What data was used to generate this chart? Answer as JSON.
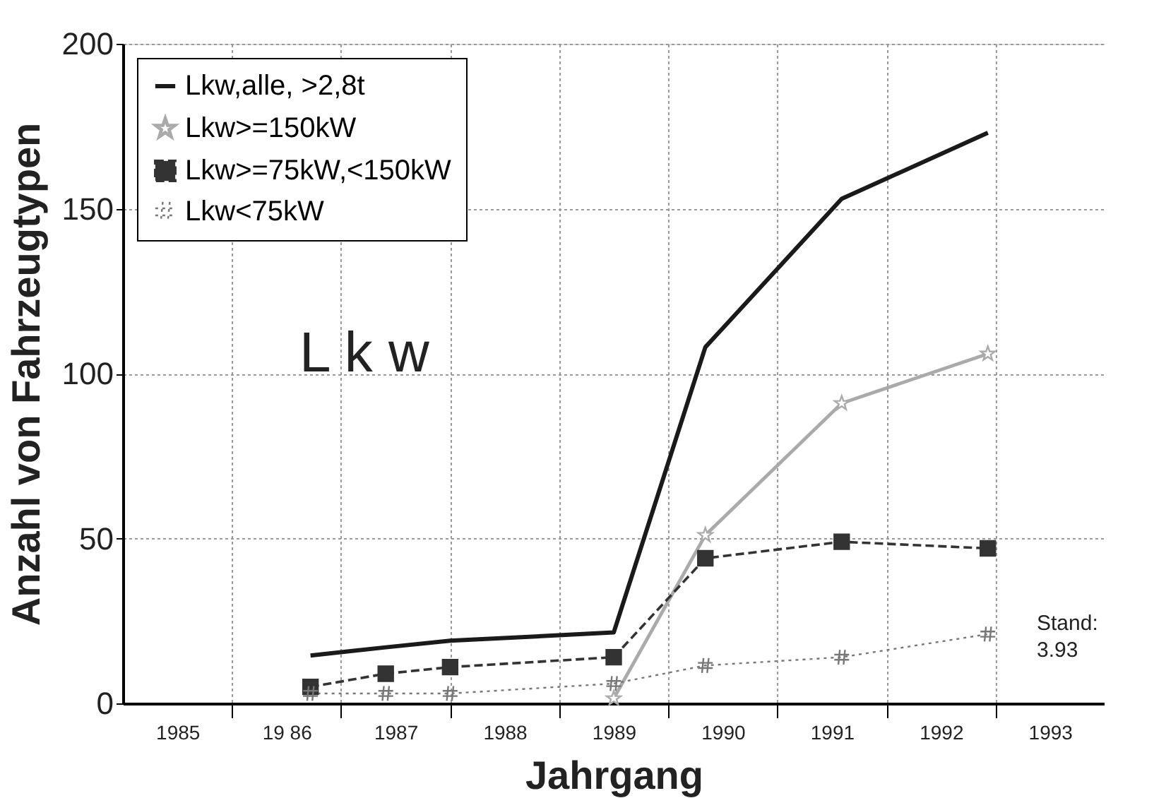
{
  "chart_data": {
    "type": "line",
    "xlabel": "Jahrgang",
    "ylabel": "Anzahl von Fahrzeugtypen",
    "xlim": [
      1985,
      1994
    ],
    "xticks": [
      {
        "value": 1985.5,
        "label": "1985"
      },
      {
        "value": 1986.5,
        "label": "19 86"
      },
      {
        "value": 1987.5,
        "label": "1987"
      },
      {
        "value": 1988.5,
        "label": "1988"
      },
      {
        "value": 1989.5,
        "label": "1989"
      },
      {
        "value": 1990.5,
        "label": "1990"
      },
      {
        "value": 1991.5,
        "label": "1991"
      },
      {
        "value": 1992.5,
        "label": "1992"
      },
      {
        "value": 1993.5,
        "label": "1993"
      },
      {
        "value": 1986,
        "label": null
      },
      {
        "value": 1987,
        "label": null
      },
      {
        "value": 1988,
        "label": null
      },
      {
        "value": 1989,
        "label": null
      },
      {
        "value": 1990,
        "label": null
      },
      {
        "value": 1991,
        "label": null
      },
      {
        "value": 1992,
        "label": null
      },
      {
        "value": 1993,
        "label": null
      }
    ],
    "ylim": [
      0,
      200
    ],
    "yticks": [
      0,
      50,
      100,
      150,
      200
    ],
    "grid": true,
    "legend": "top left",
    "x": [
      1986.72,
      1987.41,
      1988.0,
      1989.5,
      1990.34,
      1991.59,
      1992.93
    ],
    "series": [
      {
        "name": "Lkw,alle, >2,8t",
        "color": "#1a1a1a",
        "marker": "none",
        "line_style": "solid",
        "values": [
          14.5,
          17,
          19,
          21.5,
          108,
          153,
          173
        ]
      },
      {
        "name": "Lkw>=150kW",
        "color": "#aaaaaa",
        "marker": "star",
        "line_style": "solid",
        "values": [
          null,
          null,
          null,
          1.5,
          51,
          91,
          106
        ]
      },
      {
        "name": "Lkw>=75kW,<150kW",
        "color": "#333333",
        "marker": "square",
        "line_style": "dashed",
        "values": [
          5,
          9,
          11,
          14,
          44,
          49,
          47
        ]
      },
      {
        "name": "Lkw<75kW",
        "color": "#777777",
        "marker": "cross",
        "line_style": "dotted",
        "values": [
          3,
          3,
          3,
          6,
          11.5,
          14,
          21
        ]
      }
    ],
    "annotations": [
      "L k w",
      "Stand: 3.93"
    ]
  }
}
